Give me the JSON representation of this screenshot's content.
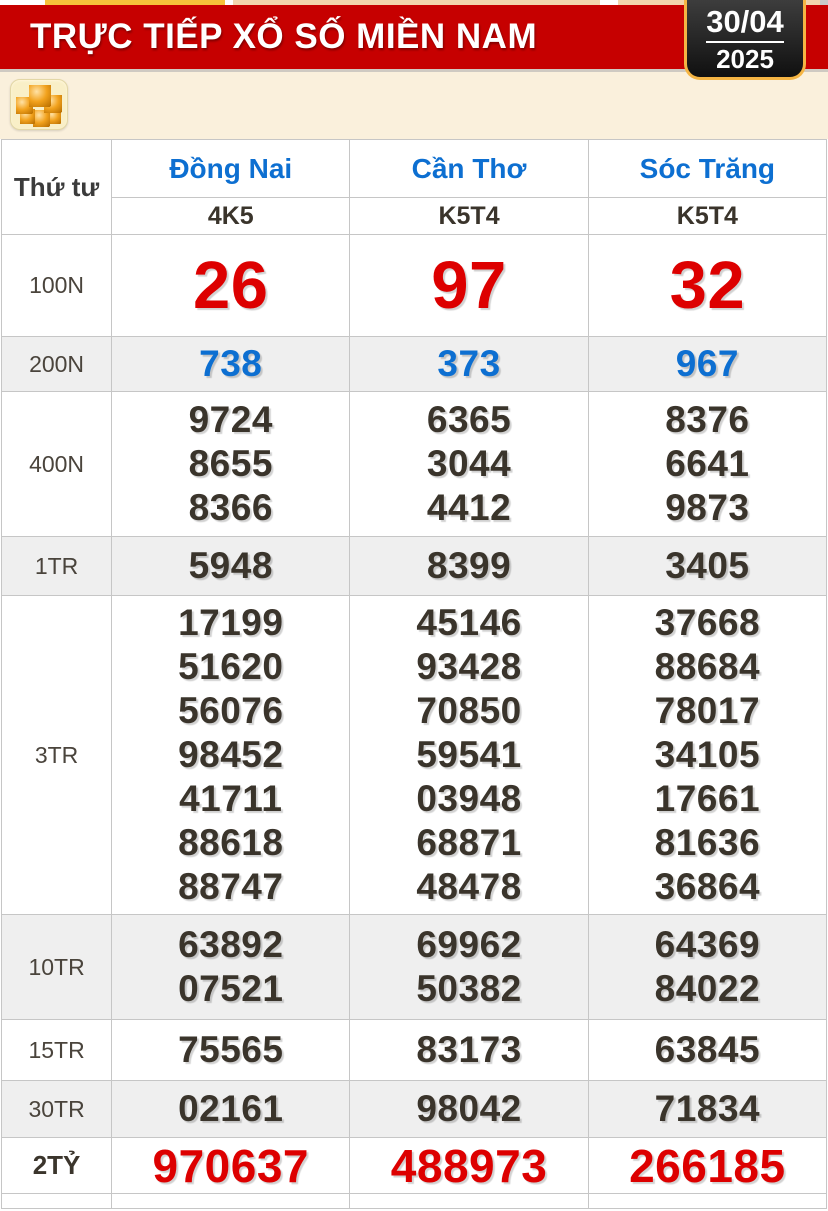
{
  "header": {
    "title": "TRỰC TIẾP XỔ SỐ MIỀN NAM",
    "date_top": "30/04",
    "date_bottom": "2025"
  },
  "toolbar": {
    "balls_button_icon": "lottery-balls-icon"
  },
  "table": {
    "weekday_label": "Thứ tư",
    "provinces": [
      {
        "name": "Đồng Nai",
        "code": "4K5"
      },
      {
        "name": "Cần Thơ",
        "code": "K5T4"
      },
      {
        "name": "Sóc Trăng",
        "code": "K5T4"
      }
    ],
    "prize_rows": [
      {
        "label": "100N",
        "style": "red-big",
        "values": [
          [
            "26"
          ],
          [
            "97"
          ],
          [
            "32"
          ]
        ]
      },
      {
        "label": "200N",
        "style": "blue",
        "values": [
          [
            "738"
          ],
          [
            "373"
          ],
          [
            "967"
          ]
        ]
      },
      {
        "label": "400N",
        "style": "",
        "values": [
          [
            "9724",
            "8655",
            "8366"
          ],
          [
            "6365",
            "3044",
            "4412"
          ],
          [
            "8376",
            "6641",
            "9873"
          ]
        ]
      },
      {
        "label": "1TR",
        "style": "",
        "values": [
          [
            "5948"
          ],
          [
            "8399"
          ],
          [
            "3405"
          ]
        ]
      },
      {
        "label": "3TR",
        "style": "",
        "values": [
          [
            "17199",
            "51620",
            "56076",
            "98452",
            "41711",
            "88618",
            "88747"
          ],
          [
            "45146",
            "93428",
            "70850",
            "59541",
            "03948",
            "68871",
            "48478"
          ],
          [
            "37668",
            "88684",
            "78017",
            "34105",
            "17661",
            "81636",
            "36864"
          ]
        ]
      },
      {
        "label": "10TR",
        "style": "",
        "values": [
          [
            "63892",
            "07521"
          ],
          [
            "69962",
            "50382"
          ],
          [
            "64369",
            "84022"
          ]
        ]
      },
      {
        "label": "15TR",
        "style": "",
        "values": [
          [
            "75565"
          ],
          [
            "83173"
          ],
          [
            "63845"
          ]
        ]
      },
      {
        "label": "30TR",
        "style": "",
        "values": [
          [
            "02161"
          ],
          [
            "98042"
          ],
          [
            "71834"
          ]
        ]
      },
      {
        "label": "2TỶ",
        "style": "red-medium",
        "values": [
          [
            "970637"
          ],
          [
            "488973"
          ],
          [
            "266185"
          ]
        ]
      }
    ]
  },
  "colors": {
    "header_bg": "#c60000",
    "accent_blue": "#0d6fd1",
    "number_dark": "#3a342b",
    "number_red": "#dd0000",
    "panel_beige": "#faf0dc",
    "date_box_border": "#f5b544"
  }
}
